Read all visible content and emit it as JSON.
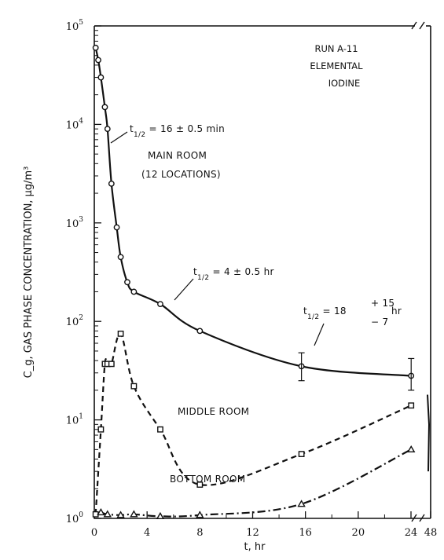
{
  "chart_data": {
    "type": "line",
    "title": "",
    "xlabel": "t, hr",
    "ylabel": "C_g, GAS PHASE CONCENTRATION, µg/m³",
    "yscale": "log",
    "ylim": [
      1,
      100000
    ],
    "y_ticks": [
      {
        "base": "10",
        "exp": "0"
      },
      {
        "base": "10",
        "exp": "1"
      },
      {
        "base": "10",
        "exp": "2"
      },
      {
        "base": "10",
        "exp": "3"
      },
      {
        "base": "10",
        "exp": "4"
      },
      {
        "base": "10",
        "exp": "5"
      }
    ],
    "xlim": [
      0,
      48
    ],
    "x_break": "between 24 and 48",
    "x_ticks": [
      "0",
      "4",
      "8",
      "12",
      "16",
      "20",
      "24",
      "48"
    ],
    "run_label": [
      "RUN A-11",
      "ELEMENTAL",
      "IODINE"
    ],
    "series": [
      {
        "name": "MAIN ROOM (12 LOCATIONS)",
        "style": "solid",
        "x": [
          0.1,
          0.3,
          0.5,
          0.8,
          1.0,
          1.3,
          1.7,
          2.0,
          2.5,
          3.0,
          5.0,
          8.0,
          15.7,
          24.2
        ],
        "y": [
          60000,
          45000,
          30000,
          15000,
          9000,
          2500,
          900,
          450,
          250,
          200,
          150,
          80,
          35,
          28
        ]
      },
      {
        "name": "MIDDLE ROOM",
        "style": "dashed",
        "x": [
          0.1,
          0.5,
          0.8,
          1.0,
          1.3,
          2.0,
          3.0,
          5.0,
          8.0,
          15.7,
          24.2
        ],
        "y": [
          1.1,
          8,
          37,
          37,
          37,
          75,
          22,
          8,
          2.2,
          4.5,
          14
        ]
      },
      {
        "name": "BOTTOM ROOM",
        "style": "dash-dot",
        "x": [
          0.5,
          1.0,
          2.0,
          3.0,
          5.0,
          8.0,
          15.7,
          24.2
        ],
        "y": [
          1.15,
          1.1,
          1.08,
          1.1,
          1.05,
          1.08,
          1.4,
          5
        ]
      }
    ],
    "annotations": [
      {
        "lines": [
          "t",
          "1/2",
          " = 16 ± 0.5 min"
        ]
      },
      {
        "lines": [
          "MAIN ROOM",
          "(12 LOCATIONS)"
        ]
      },
      {
        "lines": [
          "t",
          "1/2",
          " = 4 ± 0.5 hr"
        ]
      },
      {
        "lines": [
          "t",
          "1/2",
          " = 18 ",
          "+ 15",
          "− 7",
          " hr"
        ]
      },
      {
        "lines": [
          "MIDDLE ROOM"
        ]
      },
      {
        "lines": [
          "BOTTOM ROOM"
        ]
      }
    ],
    "grid": false,
    "legend": "none"
  }
}
